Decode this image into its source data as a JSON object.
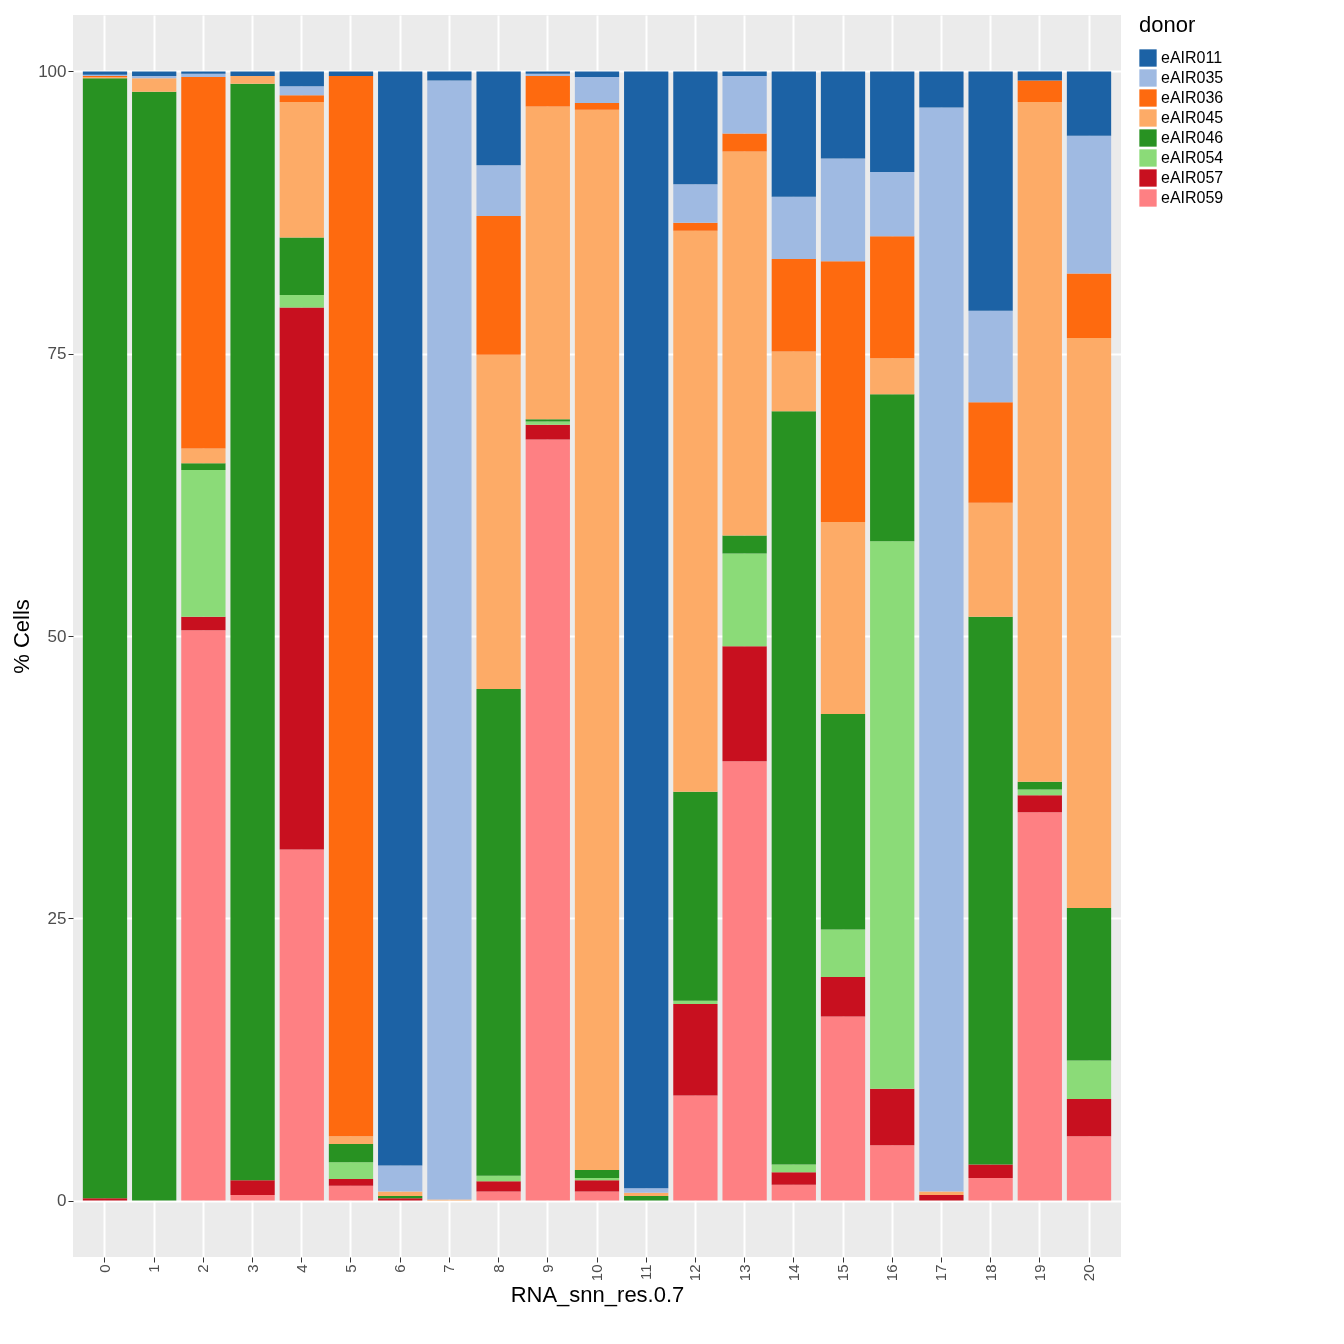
{
  "chart_data": {
    "type": "bar",
    "stacked": true,
    "xlabel": "RNA_snn_res.0.7",
    "ylabel": "% Cells",
    "legend_title": "donor",
    "legend": "right",
    "grid": true,
    "categories": [
      "0",
      "1",
      "2",
      "3",
      "4",
      "5",
      "6",
      "7",
      "8",
      "9",
      "10",
      "11",
      "12",
      "13",
      "14",
      "15",
      "16",
      "17",
      "18",
      "19",
      "20"
    ],
    "ylim": [
      -5,
      105
    ],
    "yticks": [
      0,
      25,
      50,
      75,
      100
    ],
    "series": [
      {
        "name": "eAIR059",
        "color": "#fe8083",
        "values": [
          0,
          0,
          50.5,
          0.5,
          31.1,
          1.3,
          0,
          0,
          0.8,
          67.4,
          0.8,
          0,
          9.3,
          38.9,
          1.4,
          16.3,
          4.9,
          0,
          2.0,
          34.4,
          5.7
        ]
      },
      {
        "name": "eAIR057",
        "color": "#c8101f",
        "values": [
          0.2,
          0,
          1.2,
          1.3,
          48.0,
          0.6,
          0.2,
          0,
          0.9,
          1.3,
          1.0,
          null,
          8.1,
          10.2,
          1.1,
          3.5,
          5.0,
          0.5,
          1.2,
          1.5,
          3.3
        ]
      },
      {
        "name": "eAIR054",
        "color": "#8bdb78",
        "values": [
          0,
          0,
          13.0,
          0,
          1.1,
          1.5,
          0,
          0,
          0.5,
          0.3,
          0.2,
          0,
          0.3,
          8.2,
          0.7,
          4.2,
          48.5,
          0,
          0,
          0.5,
          3.4
        ]
      },
      {
        "name": "eAIR046",
        "color": "#289222",
        "values": [
          99.2,
          98.2,
          0.6,
          97.1,
          5.1,
          1.6,
          0.2,
          0,
          43.1,
          0.2,
          0.7,
          0.4,
          18.5,
          1.6,
          66.7,
          19.1,
          13.0,
          0,
          48.5,
          0.7,
          13.5
        ]
      },
      {
        "name": "eAIR045",
        "color": "#fdab67",
        "values": [
          0.1,
          1.2,
          1.3,
          0.7,
          12.0,
          0.7,
          0.4,
          0.1,
          29.6,
          27.7,
          93.9,
          0.3,
          49.7,
          34.0,
          5.3,
          17.0,
          3.2,
          0.3,
          10.1,
          60.2,
          50.5
        ]
      },
      {
        "name": "eAIR036",
        "color": "#fe6a0f",
        "values": [
          0.1,
          0,
          32.9,
          0,
          0.6,
          93.9,
          0,
          0,
          12.3,
          2.7,
          0.6,
          0,
          0.7,
          1.6,
          8.2,
          23.1,
          10.8,
          0,
          8.9,
          1.9,
          5.7
        ]
      },
      {
        "name": "eAIR035",
        "color": "#9fbae2",
        "values": [
          0.1,
          0.2,
          0.3,
          0,
          0.8,
          0,
          2.3,
          99.1,
          4.5,
          0.2,
          2.3,
          0.4,
          3.4,
          5.1,
          5.5,
          9.1,
          5.7,
          96.0,
          8.1,
          0,
          12.2
        ]
      },
      {
        "name": "eAIR011",
        "color": "#1c62a5",
        "values": [
          0.3,
          0.4,
          0.2,
          0.4,
          1.3,
          0.4,
          96.9,
          0.8,
          8.3,
          0.2,
          0.5,
          98.9,
          10.0,
          0.4,
          11.1,
          7.7,
          8.9,
          3.2,
          21.2,
          0.8,
          5.7
        ]
      }
    ]
  }
}
